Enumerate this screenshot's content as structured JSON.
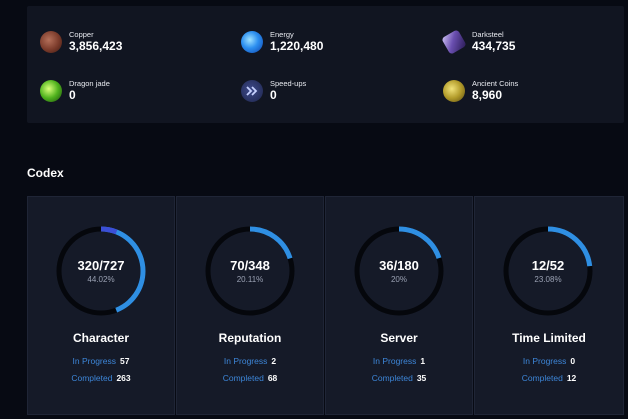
{
  "resources": [
    {
      "name": "Copper",
      "value": "3,856,423",
      "icon": "copper-icon"
    },
    {
      "name": "Energy",
      "value": "1,220,480",
      "icon": "energy-icon"
    },
    {
      "name": "Darksteel",
      "value": "434,735",
      "icon": "darksteel-icon"
    },
    {
      "name": "Dragon jade",
      "value": "0",
      "icon": "dragon-jade-icon"
    },
    {
      "name": "Speed-ups",
      "value": "0",
      "icon": "speed-ups-icon"
    },
    {
      "name": "Ancient Coins",
      "value": "8,960",
      "icon": "ancient-coins-icon"
    }
  ],
  "codex": {
    "title": "Codex",
    "in_progress_label": "In Progress",
    "completed_label": "Completed",
    "cards": [
      {
        "title": "Character",
        "count": "320/727",
        "percent": "44.02%",
        "progress": 0.4402,
        "in_progress": "57",
        "completed": "263"
      },
      {
        "title": "Reputation",
        "count": "70/348",
        "percent": "20.11%",
        "progress": 0.2011,
        "in_progress": "2",
        "completed": "68"
      },
      {
        "title": "Server",
        "count": "36/180",
        "percent": "20%",
        "progress": 0.2,
        "in_progress": "1",
        "completed": "35"
      },
      {
        "title": "Time Limited",
        "count": "12/52",
        "percent": "23.08%",
        "progress": 0.2308,
        "in_progress": "0",
        "completed": "12"
      }
    ]
  },
  "colors": {
    "ring_track": "#05070c",
    "ring_fill": "#2f8fe3",
    "ring_fill_start": "#3b4fd6",
    "link_blue": "#3d86d8"
  }
}
